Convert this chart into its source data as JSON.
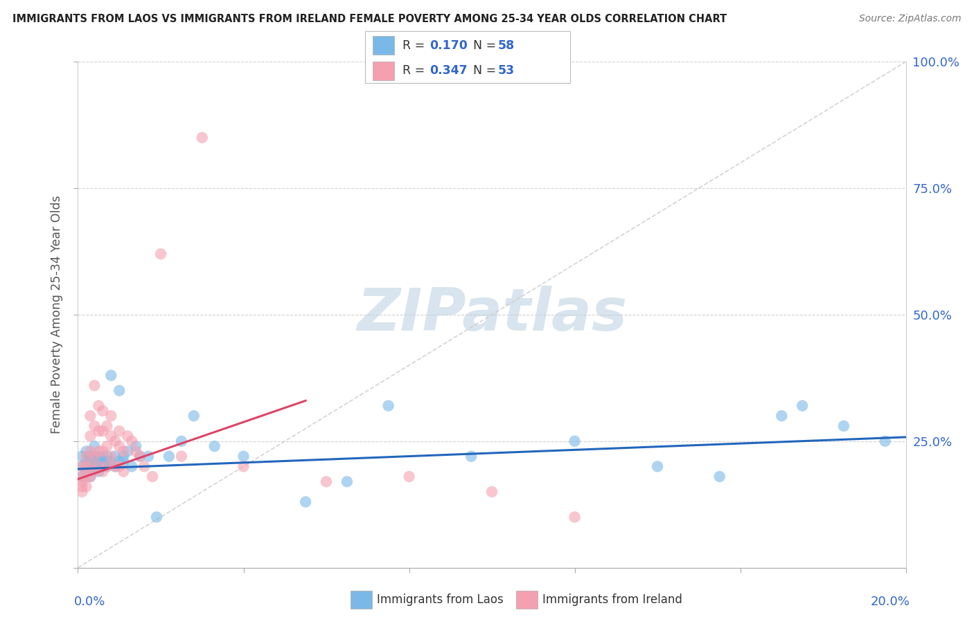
{
  "title": "IMMIGRANTS FROM LAOS VS IMMIGRANTS FROM IRELAND FEMALE POVERTY AMONG 25-34 YEAR OLDS CORRELATION CHART",
  "source": "Source: ZipAtlas.com",
  "ylabel": "Female Poverty Among 25-34 Year Olds",
  "xlim": [
    0.0,
    0.2
  ],
  "ylim": [
    0.0,
    1.0
  ],
  "color_laos": "#7ab8e8",
  "color_ireland": "#f4a0b0",
  "color_laos_line": "#2266bb",
  "color_ireland_line": "#dd4466",
  "watermark_color": "#b8cfe0",
  "background_color": "#ffffff",
  "grid_color": "#cccccc",
  "yticks": [
    0.0,
    0.25,
    0.5,
    0.75,
    1.0
  ],
  "ytick_labels_right": [
    "",
    "25.0%",
    "50.0%",
    "75.0%",
    "100.0%"
  ],
  "laos_r": "0.170",
  "laos_n": "58",
  "ireland_r": "0.347",
  "ireland_n": "53",
  "laos_line_x": [
    0.0,
    0.2
  ],
  "laos_line_y": [
    0.195,
    0.258
  ],
  "ireland_line_x": [
    0.0,
    0.055
  ],
  "ireland_line_y": [
    0.175,
    0.33
  ],
  "ref_line_x": [
    0.0,
    0.2
  ],
  "ref_line_y": [
    0.0,
    1.0
  ],
  "laos_x": [
    0.001,
    0.001,
    0.001,
    0.002,
    0.002,
    0.002,
    0.002,
    0.003,
    0.003,
    0.003,
    0.003,
    0.003,
    0.004,
    0.004,
    0.004,
    0.004,
    0.005,
    0.005,
    0.005,
    0.005,
    0.005,
    0.006,
    0.006,
    0.006,
    0.006,
    0.007,
    0.007,
    0.007,
    0.008,
    0.008,
    0.009,
    0.009,
    0.01,
    0.01,
    0.011,
    0.011,
    0.012,
    0.013,
    0.014,
    0.015,
    0.017,
    0.019,
    0.022,
    0.025,
    0.028,
    0.033,
    0.04,
    0.055,
    0.065,
    0.075,
    0.095,
    0.12,
    0.14,
    0.155,
    0.17,
    0.175,
    0.185,
    0.195
  ],
  "laos_y": [
    0.2,
    0.22,
    0.18,
    0.21,
    0.19,
    0.23,
    0.2,
    0.22,
    0.2,
    0.18,
    0.21,
    0.22,
    0.2,
    0.22,
    0.2,
    0.24,
    0.21,
    0.2,
    0.22,
    0.19,
    0.21,
    0.22,
    0.2,
    0.21,
    0.2,
    0.22,
    0.2,
    0.21,
    0.21,
    0.38,
    0.2,
    0.22,
    0.35,
    0.21,
    0.22,
    0.21,
    0.23,
    0.2,
    0.24,
    0.22,
    0.22,
    0.1,
    0.22,
    0.25,
    0.3,
    0.24,
    0.22,
    0.13,
    0.17,
    0.32,
    0.22,
    0.25,
    0.2,
    0.18,
    0.3,
    0.32,
    0.28,
    0.25
  ],
  "ireland_x": [
    0.001,
    0.001,
    0.001,
    0.001,
    0.001,
    0.002,
    0.002,
    0.002,
    0.002,
    0.003,
    0.003,
    0.003,
    0.003,
    0.003,
    0.004,
    0.004,
    0.004,
    0.004,
    0.005,
    0.005,
    0.005,
    0.005,
    0.006,
    0.006,
    0.006,
    0.006,
    0.007,
    0.007,
    0.007,
    0.008,
    0.008,
    0.008,
    0.009,
    0.009,
    0.01,
    0.01,
    0.01,
    0.011,
    0.011,
    0.012,
    0.013,
    0.014,
    0.015,
    0.016,
    0.018,
    0.02,
    0.025,
    0.03,
    0.04,
    0.06,
    0.08,
    0.1,
    0.12
  ],
  "ireland_y": [
    0.2,
    0.18,
    0.17,
    0.15,
    0.16,
    0.22,
    0.2,
    0.18,
    0.16,
    0.3,
    0.26,
    0.23,
    0.2,
    0.18,
    0.36,
    0.28,
    0.22,
    0.19,
    0.32,
    0.27,
    0.23,
    0.2,
    0.31,
    0.27,
    0.23,
    0.19,
    0.28,
    0.24,
    0.2,
    0.3,
    0.26,
    0.22,
    0.25,
    0.2,
    0.27,
    0.24,
    0.2,
    0.23,
    0.19,
    0.26,
    0.25,
    0.23,
    0.22,
    0.2,
    0.18,
    0.62,
    0.22,
    0.85,
    0.2,
    0.17,
    0.18,
    0.15,
    0.1
  ]
}
